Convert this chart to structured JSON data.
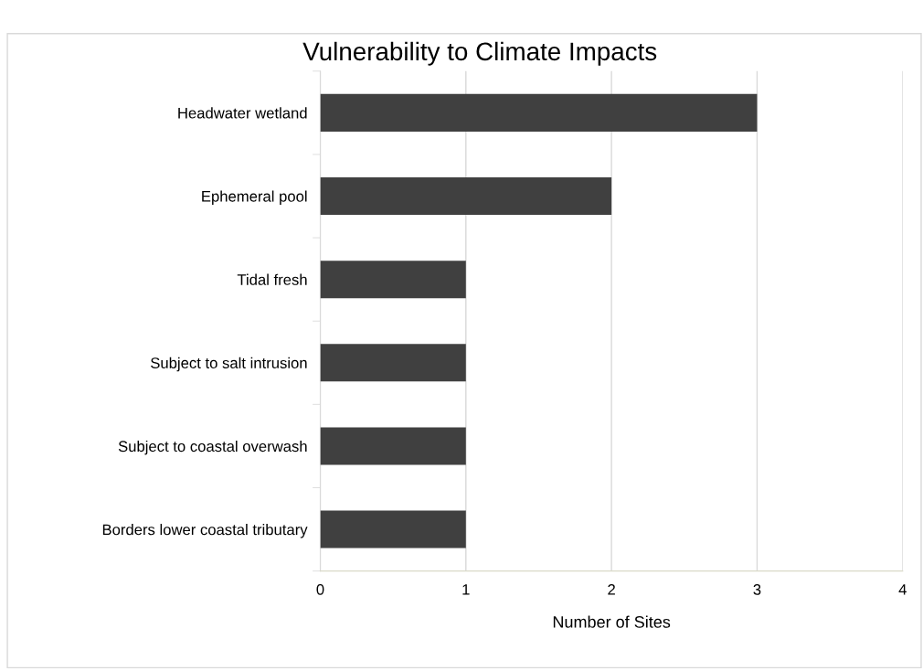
{
  "chart_data": {
    "type": "bar",
    "orientation": "horizontal",
    "title": "Vulnerability to Climate Impacts",
    "xlabel": "Number of Sites",
    "categories": [
      "Headwater wetland",
      "Ephemeral pool",
      "Tidal fresh",
      "Subject to salt intrusion",
      "Subject to coastal overwash",
      "Borders lower coastal tributary"
    ],
    "values": [
      3,
      2,
      1,
      1,
      1,
      1
    ],
    "color": "#404040",
    "xlim": [
      0,
      4
    ],
    "xticks": [
      0,
      1,
      2,
      3,
      4
    ],
    "grid": "x"
  }
}
